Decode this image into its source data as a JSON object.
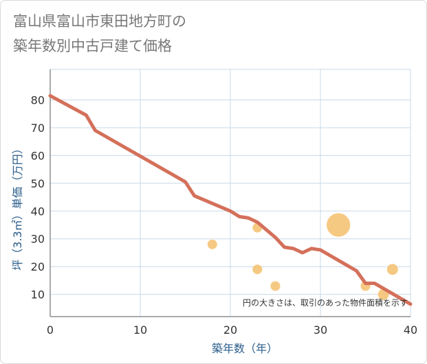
{
  "chart_data": {
    "type": "scatter",
    "title_line1": "富山県富山市東田地方町の",
    "title_line2": "築年数別中古戸建て価格",
    "xlabel": "築年数（年）",
    "ylabel": "坪（3.3㎡）単価（万円）",
    "xlim": [
      0,
      40
    ],
    "ylim": [
      2,
      91
    ],
    "x_ticks": [
      0,
      10,
      20,
      30,
      40
    ],
    "y_ticks": [
      10,
      20,
      30,
      40,
      50,
      60,
      70,
      80
    ],
    "grid": true,
    "note": "円の大きさは、取引のあった物件面積を示す",
    "colors": {
      "line": "#d4705a",
      "bubble": "#f5c06c",
      "grid": "#c8d8e8",
      "axis": "#555555"
    },
    "line_series": {
      "x": [
        0,
        4,
        5,
        15,
        16,
        20,
        21,
        22,
        23,
        25,
        26,
        27,
        28,
        29,
        30,
        34,
        35,
        36,
        40
      ],
      "y": [
        81.5,
        74.5,
        69,
        50.5,
        45.5,
        40,
        38,
        37.5,
        36,
        30.5,
        27,
        26.5,
        25,
        26.5,
        26,
        18.5,
        14,
        14,
        6.5
      ]
    },
    "bubbles": [
      {
        "x": 18,
        "y": 28,
        "size": 1
      },
      {
        "x": 23,
        "y": 34,
        "size": 1
      },
      {
        "x": 23,
        "y": 19,
        "size": 1
      },
      {
        "x": 25,
        "y": 13,
        "size": 1
      },
      {
        "x": 32,
        "y": 35,
        "size": 6
      },
      {
        "x": 35,
        "y": 13,
        "size": 1
      },
      {
        "x": 37,
        "y": 10,
        "size": 1.3
      },
      {
        "x": 38,
        "y": 19,
        "size": 1.3
      }
    ]
  }
}
